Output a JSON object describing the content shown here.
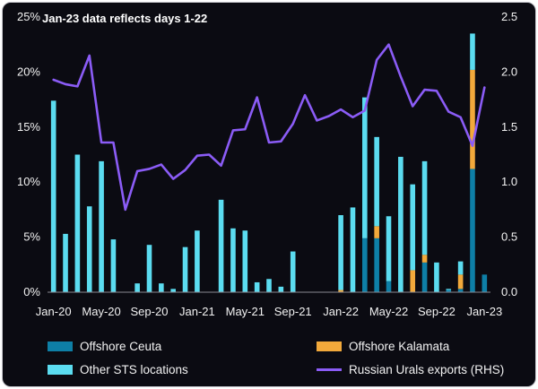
{
  "chart_data": {
    "type": "bar",
    "title": "",
    "annotation": "Jan-23 data reflects days 1-22",
    "xlabel": "",
    "ylabel": "",
    "ylim": [
      0,
      25
    ],
    "ylim_right": [
      0,
      2.5
    ],
    "left_ticks": [
      "0%",
      "5%",
      "10%",
      "15%",
      "20%",
      "25%"
    ],
    "left_tick_values": [
      0,
      5,
      10,
      15,
      20,
      25
    ],
    "right_ticks": [
      "0.0",
      "0.5",
      "1.0",
      "1.5",
      "2.0",
      "2.5"
    ],
    "right_tick_values": [
      0,
      0.5,
      1.0,
      1.5,
      2.0,
      2.5
    ],
    "x_tick_labels": [
      "Jan-20",
      "May-20",
      "Sep-20",
      "Jan-21",
      "May-21",
      "Sep-21",
      "Jan-22",
      "May-22",
      "Sep-22",
      "Jan-23"
    ],
    "x_tick_indices": [
      0,
      4,
      8,
      12,
      16,
      20,
      24,
      28,
      32,
      36
    ],
    "categories": [
      "Jan-20",
      "Feb-20",
      "Mar-20",
      "Apr-20",
      "May-20",
      "Jun-20",
      "Jul-20",
      "Aug-20",
      "Sep-20",
      "Oct-20",
      "Nov-20",
      "Dec-20",
      "Jan-21",
      "Feb-21",
      "Mar-21",
      "Apr-21",
      "May-21",
      "Jun-21",
      "Jul-21",
      "Aug-21",
      "Sep-21",
      "Oct-21",
      "Nov-21",
      "Dec-21",
      "Jan-22",
      "Feb-22",
      "Mar-22",
      "Apr-22",
      "May-22",
      "Jun-22",
      "Jul-22",
      "Aug-22",
      "Sep-22",
      "Oct-22",
      "Nov-22",
      "Dec-22",
      "Jan-23"
    ],
    "series": [
      {
        "name": "Offshore Ceuta",
        "type": "bar",
        "color": "#0e7fa6",
        "values": [
          0,
          0,
          0,
          0,
          0,
          0,
          0,
          0,
          0,
          0,
          0,
          0,
          0,
          0,
          0,
          0,
          0,
          0,
          0,
          0,
          0,
          0,
          0,
          0,
          0,
          0,
          4.9,
          4.9,
          1.0,
          0,
          0,
          2.7,
          0,
          0.2,
          0.3,
          11.2,
          1.6
        ]
      },
      {
        "name": "Offshore Kalamata",
        "type": "bar",
        "color": "#f2a93b",
        "values": [
          0,
          0,
          0,
          0,
          0,
          0,
          0,
          0,
          0,
          0,
          0,
          0,
          0,
          0,
          0,
          0,
          0,
          0,
          0,
          0,
          0,
          0,
          0,
          0,
          0.2,
          0,
          0,
          1.1,
          0,
          0,
          2.0,
          0.7,
          0,
          0,
          1.3,
          9.0,
          0
        ]
      },
      {
        "name": "Other STS locations",
        "type": "bar",
        "color": "#5bdcf0",
        "values": [
          17.4,
          5.3,
          12.5,
          7.8,
          11.9,
          4.8,
          0,
          0.8,
          4.3,
          0.8,
          0.3,
          4.1,
          5.6,
          0,
          8.4,
          5.8,
          5.6,
          0.9,
          1.2,
          0.5,
          3.7,
          0,
          0,
          0,
          6.8,
          7.7,
          12.8,
          8.1,
          5.9,
          12.3,
          7.8,
          8.5,
          2.7,
          0.1,
          1.2,
          3.3,
          0
        ]
      },
      {
        "name": "Russian Urals exports (RHS)",
        "type": "line",
        "axis": "right",
        "color": "#8b5cf6",
        "values": [
          1.93,
          1.89,
          1.87,
          2.15,
          1.36,
          1.36,
          0.75,
          1.1,
          1.12,
          1.16,
          1.03,
          1.11,
          1.24,
          1.25,
          1.15,
          1.47,
          1.48,
          1.77,
          1.36,
          1.37,
          1.53,
          1.79,
          1.56,
          1.6,
          1.66,
          1.59,
          1.65,
          2.11,
          2.25,
          1.96,
          1.69,
          1.84,
          1.83,
          1.64,
          1.59,
          1.33,
          1.86
        ]
      }
    ],
    "legend": {
      "placement": "bottom",
      "items": [
        {
          "label": "Offshore Ceuta",
          "color": "#0e7fa6",
          "kind": "bar"
        },
        {
          "label": "Offshore Kalamata",
          "color": "#f2a93b",
          "kind": "bar"
        },
        {
          "label": "Other STS locations",
          "color": "#5bdcf0",
          "kind": "bar"
        },
        {
          "label": "Russian Urals exports (RHS)",
          "color": "#8b5cf6",
          "kind": "line"
        }
      ]
    }
  }
}
